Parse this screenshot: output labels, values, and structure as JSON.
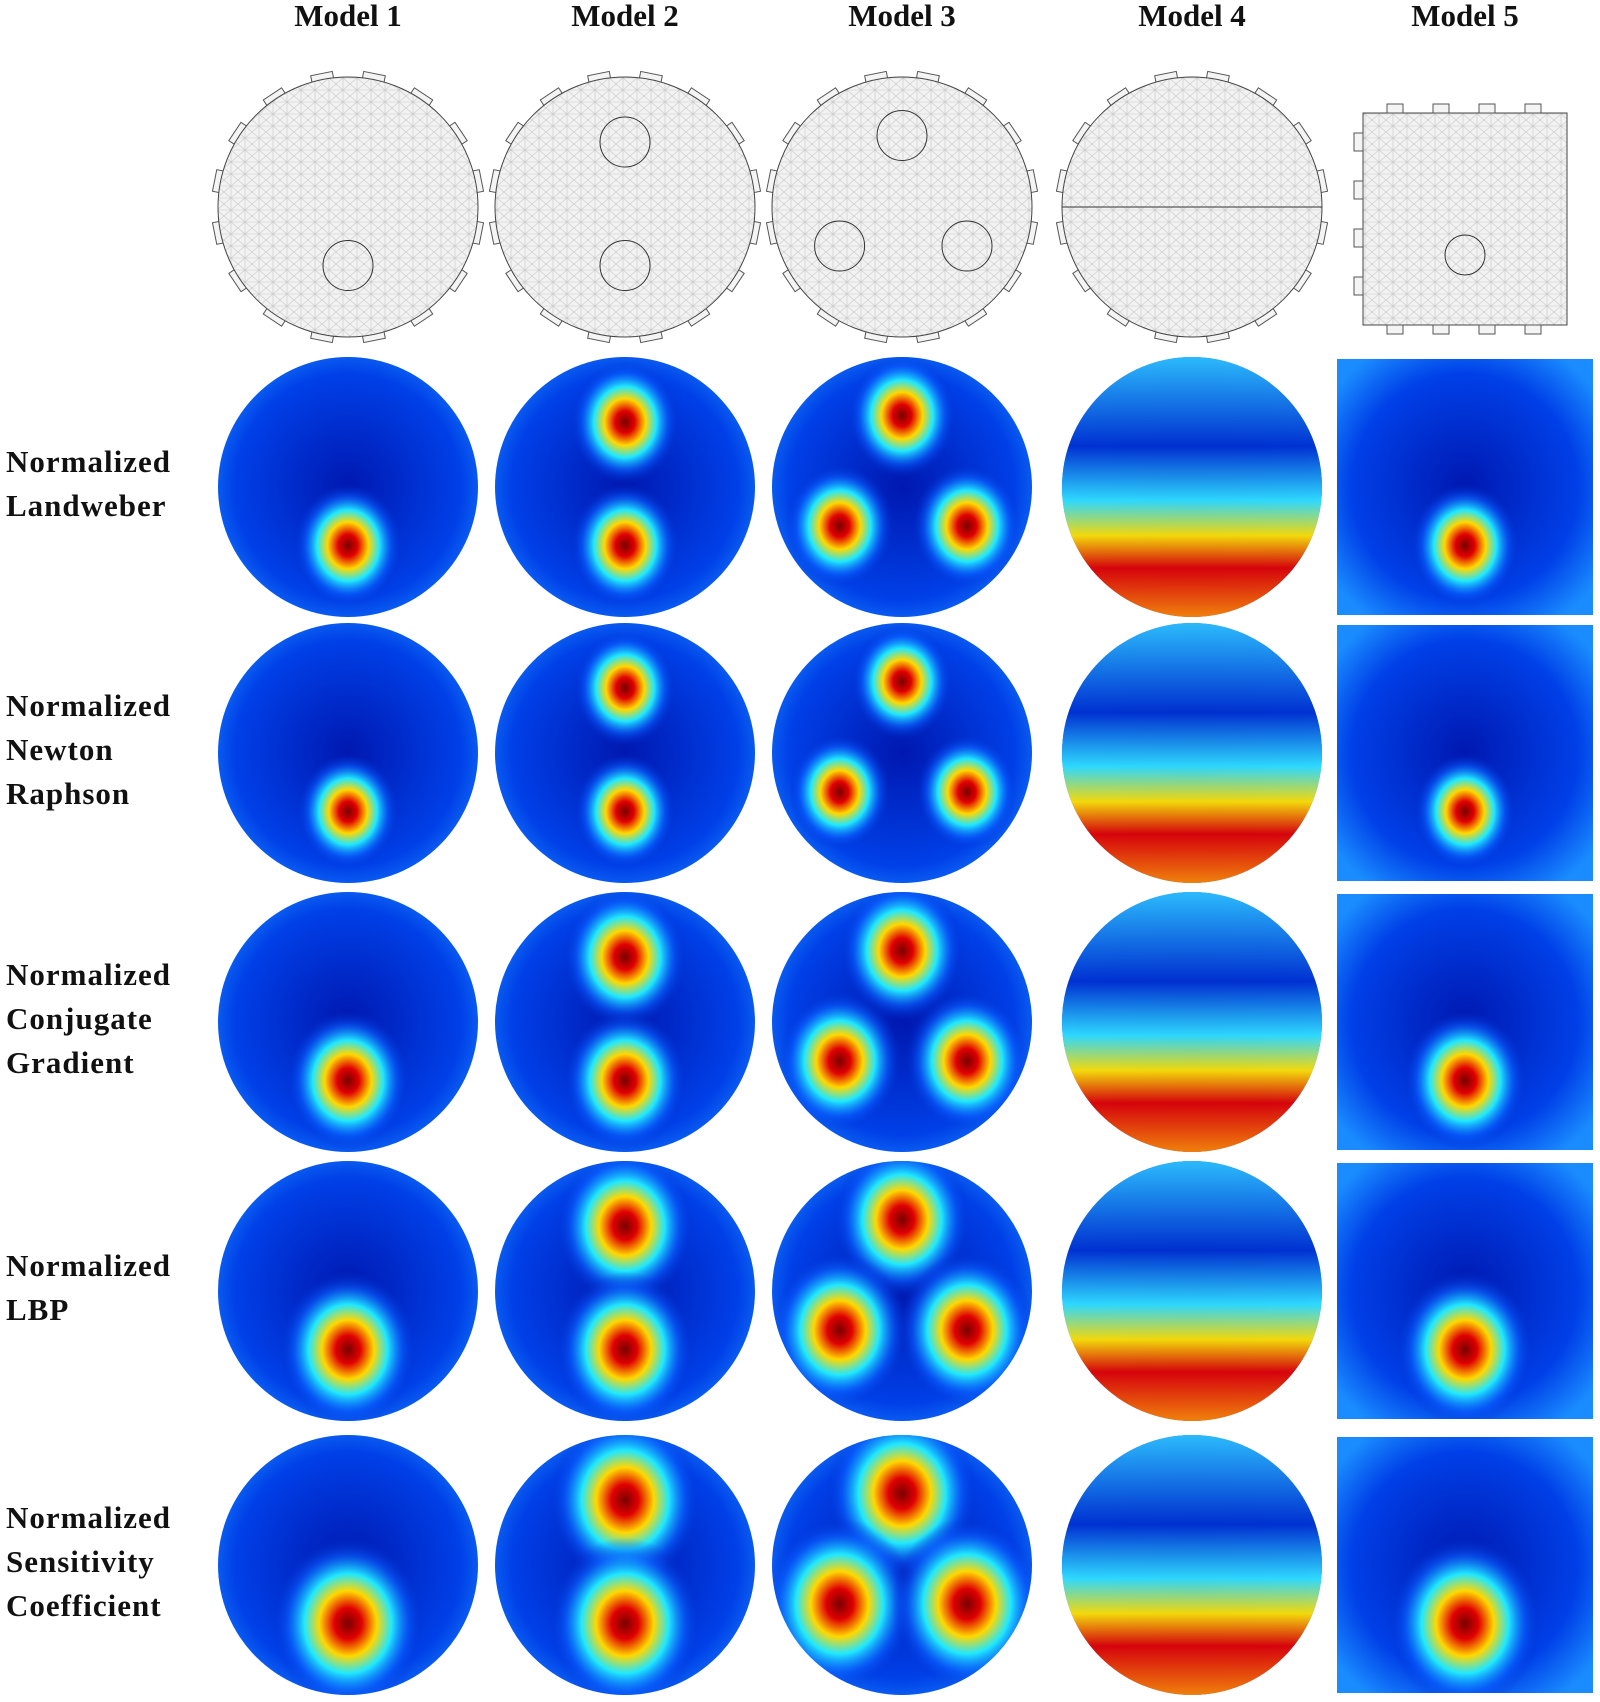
{
  "columns": [
    "Model 1",
    "Model 2",
    "Model 3",
    "Model 4",
    "Model 5"
  ],
  "rows": [
    {
      "lines": [
        "Normalized",
        "Landweber"
      ]
    },
    {
      "lines": [
        "Normalized",
        "Newton",
        "Raphson"
      ]
    },
    {
      "lines": [
        "Normalized",
        "Conjugate",
        "Gradient"
      ]
    },
    {
      "lines": [
        "Normalized",
        "LBP"
      ]
    },
    {
      "lines": [
        "Normalized",
        "Sensitivity",
        "Coefficient"
      ]
    }
  ]
}
